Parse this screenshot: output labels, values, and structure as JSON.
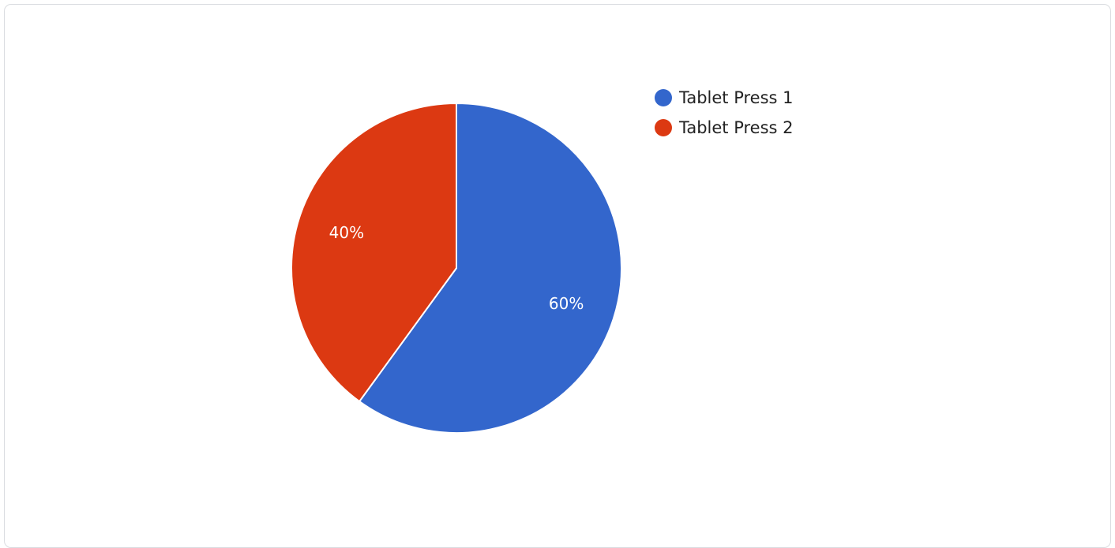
{
  "chart_data": {
    "type": "pie",
    "title": "",
    "legend_position": "right-top",
    "slices": [
      {
        "label": "Tablet Press 1",
        "value": 60,
        "display": "60%",
        "color": "#3366cc"
      },
      {
        "label": "Tablet Press 2",
        "value": 40,
        "display": "40%",
        "color": "#dc3912"
      }
    ]
  }
}
